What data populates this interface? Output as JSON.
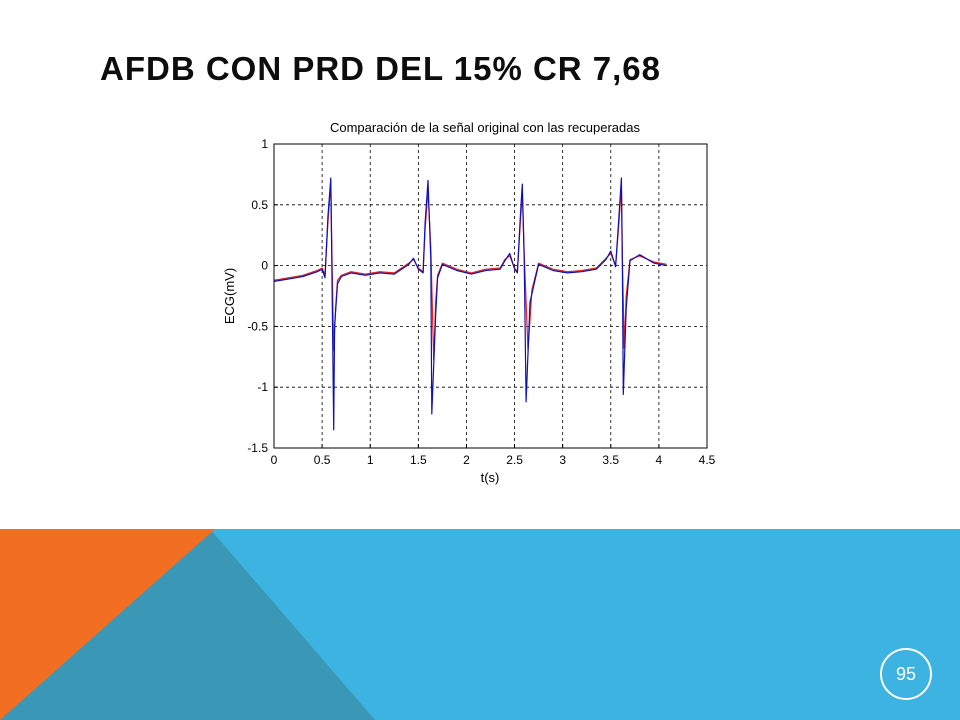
{
  "slide": {
    "title": "AFDB CON PRD DEL 15% CR 7,68",
    "page_number": "95"
  },
  "colors": {
    "background": "#ffffff",
    "band_blue": "#3cb3e0",
    "triangle_teal": "#3a97b5",
    "triangle_orange": "#f26e22",
    "series_original": "#e02020",
    "series_recovered": "#1010b0"
  },
  "chart_data": {
    "type": "line",
    "title": "Comparación de la señal original con las recuperadas",
    "xlabel": "t(s)",
    "ylabel": "ECG(mV)",
    "xlim": [
      0,
      4.5
    ],
    "ylim": [
      -1.5,
      1
    ],
    "xticks": [
      "0",
      "0.5",
      "1",
      "1.5",
      "2",
      "2.5",
      "3",
      "3.5",
      "4",
      "4.5"
    ],
    "yticks": [
      "-1.5",
      "-1",
      "-0.5",
      "0",
      "0.5",
      "1"
    ],
    "grid": "dashed",
    "series": [
      {
        "color": "#e02020",
        "x": [
          0,
          0.15,
          0.3,
          0.45,
          0.5,
          0.53,
          0.56,
          0.59,
          0.6,
          0.62,
          0.64,
          0.66,
          0.7,
          0.8,
          0.95,
          1.1,
          1.25,
          1.4,
          1.45,
          1.5,
          1.55,
          1.57,
          1.6,
          1.63,
          1.66,
          1.68,
          1.7,
          1.75,
          1.9,
          2.05,
          2.2,
          2.35,
          2.4,
          2.45,
          2.5,
          2.53,
          2.56,
          2.58,
          2.6,
          2.64,
          2.68,
          2.75,
          2.9,
          3.05,
          3.2,
          3.35,
          3.45,
          3.5,
          3.55,
          3.58,
          3.61,
          3.62,
          3.64,
          3.66,
          3.7,
          3.8,
          3.95,
          4.08
        ],
        "y": [
          -0.12,
          -0.1,
          -0.08,
          -0.04,
          -0.02,
          -0.08,
          0.35,
          0.68,
          0.2,
          -0.7,
          -0.35,
          -0.12,
          -0.08,
          -0.05,
          -0.07,
          -0.05,
          -0.06,
          0.02,
          0.05,
          -0.02,
          -0.05,
          0.3,
          0.62,
          0.15,
          -0.78,
          -0.3,
          -0.08,
          0.02,
          -0.03,
          -0.06,
          -0.03,
          -0.02,
          0.05,
          0.08,
          -0.02,
          -0.05,
          0.35,
          0.6,
          0.1,
          -0.7,
          -0.2,
          0.02,
          -0.03,
          -0.05,
          -0.04,
          -0.02,
          0.06,
          0.1,
          0.0,
          0.3,
          0.66,
          0.1,
          -0.68,
          -0.25,
          0.05,
          0.08,
          0.03,
          0.01
        ]
      },
      {
        "color": "#1010b0",
        "x": [
          0,
          0.15,
          0.3,
          0.45,
          0.5,
          0.53,
          0.56,
          0.59,
          0.6,
          0.62,
          0.63,
          0.66,
          0.7,
          0.8,
          0.95,
          1.1,
          1.25,
          1.4,
          1.45,
          1.5,
          1.55,
          1.57,
          1.6,
          1.63,
          1.64,
          1.68,
          1.7,
          1.75,
          1.9,
          2.05,
          2.2,
          2.35,
          2.4,
          2.45,
          2.5,
          2.53,
          2.56,
          2.58,
          2.6,
          2.62,
          2.66,
          2.75,
          2.9,
          3.05,
          3.2,
          3.35,
          3.45,
          3.5,
          3.55,
          3.58,
          3.61,
          3.62,
          3.63,
          3.66,
          3.7,
          3.8,
          3.95,
          4.08
        ],
        "y": [
          -0.13,
          -0.11,
          -0.09,
          -0.05,
          -0.03,
          -0.1,
          0.4,
          0.72,
          0.1,
          -1.35,
          -0.5,
          -0.15,
          -0.09,
          -0.06,
          -0.08,
          -0.06,
          -0.07,
          0.01,
          0.06,
          -0.03,
          -0.06,
          0.35,
          0.7,
          0.05,
          -1.22,
          -0.4,
          -0.1,
          0.01,
          -0.04,
          -0.07,
          -0.04,
          -0.03,
          0.04,
          0.1,
          -0.03,
          -0.06,
          0.4,
          0.67,
          0.05,
          -1.12,
          -0.3,
          0.01,
          -0.04,
          -0.06,
          -0.05,
          -0.03,
          0.05,
          0.12,
          -0.01,
          0.35,
          0.72,
          0.05,
          -1.06,
          -0.35,
          0.04,
          0.09,
          0.02,
          0.0
        ]
      }
    ]
  }
}
